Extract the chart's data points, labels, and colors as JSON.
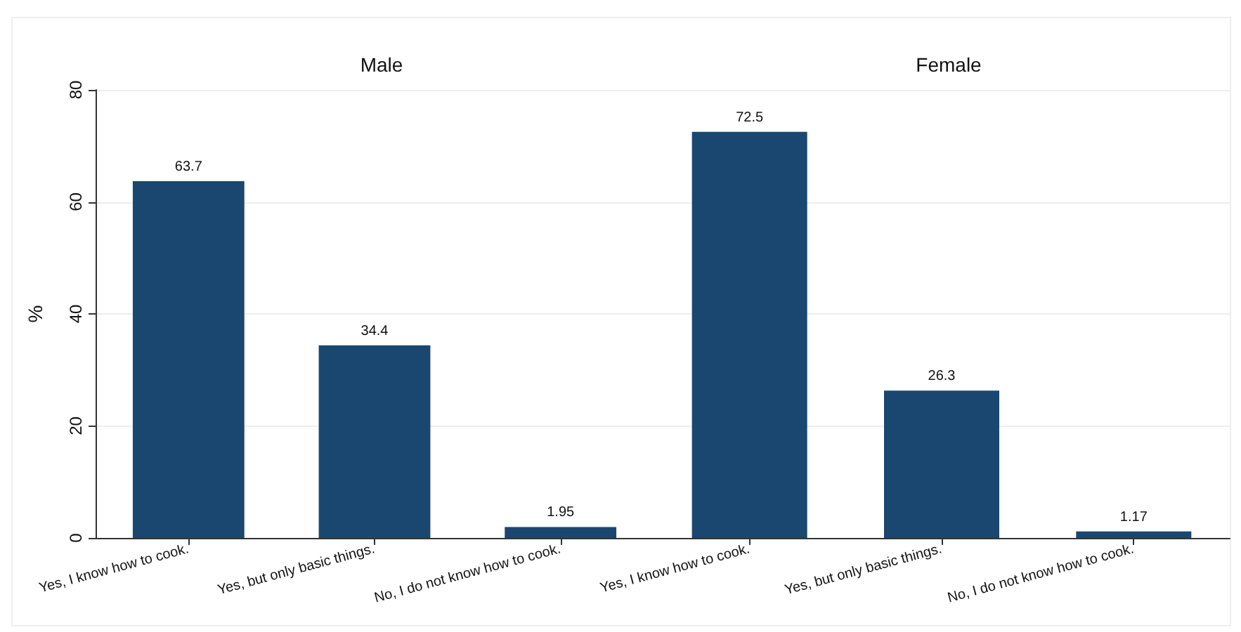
{
  "chart_data": [
    {
      "type": "bar",
      "title": "Male",
      "ylabel": "%",
      "categories": [
        "Yes, I know how to cook.",
        "Yes, but only basic things.",
        "No, I do not know how to cook."
      ],
      "values": [
        63.7,
        34.4,
        1.95
      ],
      "color": "#1a476f",
      "ylim": [
        0,
        80
      ],
      "yticks": [
        0,
        20,
        40,
        60,
        80
      ],
      "grid": "y",
      "data_labels": true
    },
    {
      "type": "bar",
      "title": "Female",
      "categories": [
        "Yes, I know how to cook.",
        "Yes, but only basic things.",
        "No, I do not know how to cook."
      ],
      "values": [
        72.5,
        26.3,
        1.17
      ],
      "color": "#1a476f",
      "ylim": [
        0,
        80
      ],
      "yticks": [
        0,
        20,
        40,
        60,
        80
      ],
      "grid": "y",
      "data_labels": true,
      "tick_labels": "x"
    }
  ]
}
